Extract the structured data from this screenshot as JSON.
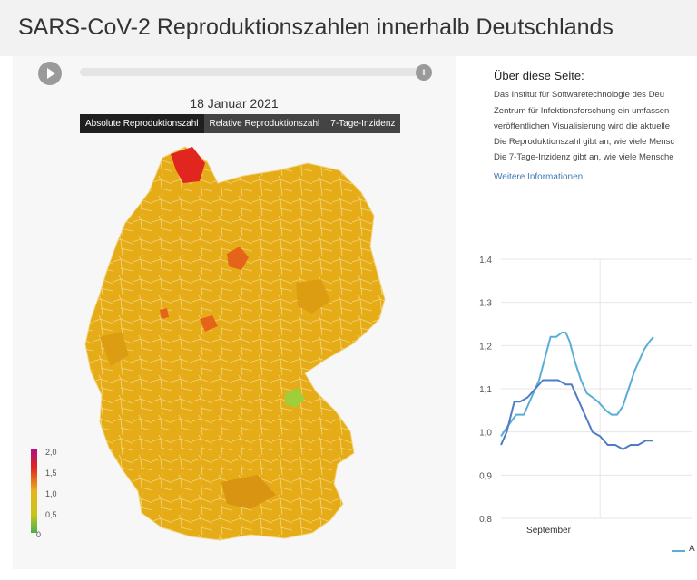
{
  "page_title": "SARS-CoV-2 Reproduktionszahlen innerhalb Deutschlands",
  "timeline": {
    "play_icon": "play-icon",
    "handle_icon": "pause-icon",
    "progress": 1.0
  },
  "map": {
    "date": "18 Januar 2021",
    "tabs": [
      {
        "label": "Absolute Reproduktionszahl",
        "active": true
      },
      {
        "label": "Relative Reproduktionszahl",
        "active": false
      },
      {
        "label": "7-Tage-Inzidenz",
        "active": false
      }
    ],
    "colors": {
      "low": "#4caf50",
      "mid": "#e8b51a",
      "high": "#e0261f",
      "max": "#b01080",
      "border": "#f2d680"
    },
    "legend": {
      "ticks": [
        "2,0",
        "1,5",
        "1,0",
        "0,5",
        "0"
      ]
    }
  },
  "about": {
    "title": "Über diese Seite:",
    "lines": [
      "Das Institut für Softwaretechnologie des Deu",
      "Zentrum für Infektionsforschung ein umfassen",
      "veröffentlichen Visualisierung wird die aktuelle",
      "Die Reproduktionszahl gibt an, wie viele Mensc",
      "Die 7-Tage-Inzidenz gibt an, wie viele Mensche"
    ],
    "more_link": "Weitere Informationen"
  },
  "chart_data": {
    "type": "line",
    "ylim": [
      0.8,
      1.4
    ],
    "y_ticks": [
      "1,4",
      "1,3",
      "1,2",
      "1,1",
      "1,0",
      "0,9",
      "0,8"
    ],
    "x_ticks": [
      {
        "label": "September",
        "x": 0.25
      }
    ],
    "x_range": [
      0,
      1
    ],
    "series": [
      {
        "name": "",
        "color": "#5aaed6",
        "x": [
          0.0,
          0.03,
          0.08,
          0.12,
          0.16,
          0.2,
          0.23,
          0.26,
          0.29,
          0.32,
          0.34,
          0.36,
          0.39,
          0.42,
          0.45,
          0.48,
          0.51,
          0.55,
          0.58,
          0.61,
          0.64,
          0.67,
          0.7,
          0.73,
          0.75,
          0.78,
          0.8
        ],
        "y": [
          0.99,
          1.01,
          1.04,
          1.04,
          1.08,
          1.12,
          1.17,
          1.22,
          1.22,
          1.23,
          1.23,
          1.21,
          1.16,
          1.12,
          1.09,
          1.08,
          1.07,
          1.05,
          1.04,
          1.04,
          1.06,
          1.1,
          1.14,
          1.17,
          1.19,
          1.21,
          1.22
        ]
      },
      {
        "name": "",
        "color": "#4f7cc4",
        "x": [
          0.0,
          0.03,
          0.07,
          0.1,
          0.14,
          0.18,
          0.22,
          0.26,
          0.3,
          0.34,
          0.37,
          0.4,
          0.44,
          0.48,
          0.52,
          0.56,
          0.6,
          0.64,
          0.68,
          0.72,
          0.76,
          0.8
        ],
        "y": [
          0.97,
          1.0,
          1.07,
          1.07,
          1.08,
          1.1,
          1.12,
          1.12,
          1.12,
          1.11,
          1.11,
          1.08,
          1.04,
          1.0,
          0.99,
          0.97,
          0.97,
          0.96,
          0.97,
          0.97,
          0.98,
          0.98
        ]
      }
    ],
    "legend": {
      "labels": [
        "A"
      ],
      "placement": "bottom-right"
    }
  }
}
